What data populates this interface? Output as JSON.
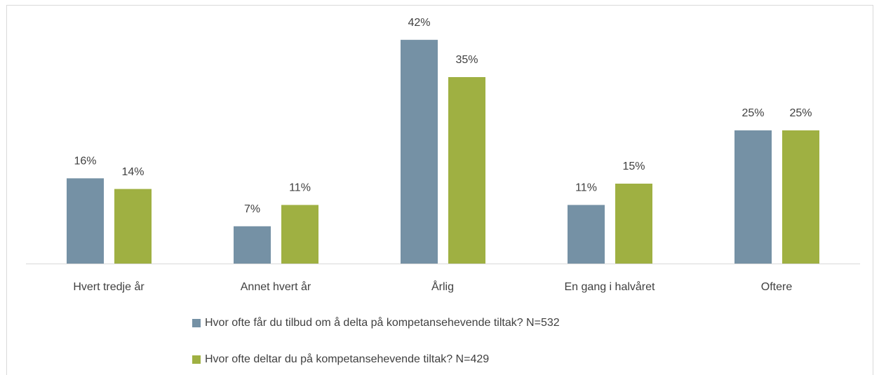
{
  "chart_data": {
    "type": "bar",
    "categories": [
      "Hvert tredje år",
      "Annet hvert år",
      "Årlig",
      "En gang i halvåret",
      "Oftere"
    ],
    "series": [
      {
        "name": "Hvor ofte får du tilbud om å delta på kompetansehevende tiltak? N=532",
        "color": "#7591a5",
        "values": [
          16,
          7,
          42,
          11,
          25
        ],
        "value_labels": [
          "16%",
          "7%",
          "42%",
          "11%",
          "25%"
        ]
      },
      {
        "name": "Hvor ofte deltar du på kompetansehevende tiltak? N=429",
        "color": "#9fb042",
        "values": [
          14,
          11,
          35,
          15,
          25
        ],
        "value_labels": [
          "14%",
          "11%",
          "35%",
          "15%",
          "25%"
        ]
      }
    ]
  }
}
